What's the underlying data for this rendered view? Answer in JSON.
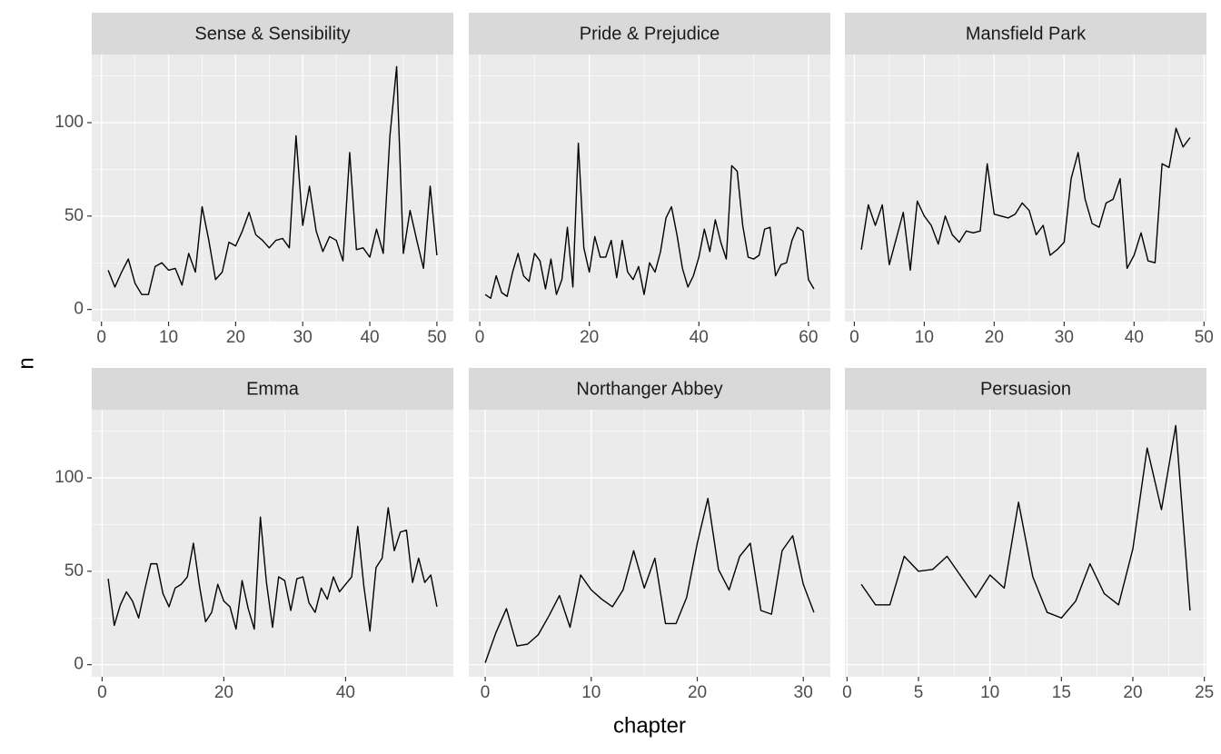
{
  "chart_data": [
    {
      "type": "line",
      "title": "Sense & Sensibility",
      "x": [
        1,
        2,
        3,
        4,
        5,
        6,
        7,
        8,
        9,
        10,
        11,
        12,
        13,
        14,
        15,
        16,
        17,
        18,
        19,
        20,
        21,
        22,
        23,
        24,
        25,
        26,
        27,
        28,
        29,
        30,
        31,
        32,
        33,
        34,
        35,
        36,
        37,
        38,
        39,
        40,
        41,
        42,
        43,
        44,
        45,
        46,
        47,
        48,
        49,
        50
      ],
      "values": [
        21,
        12,
        20,
        27,
        14,
        8,
        8,
        23,
        25,
        21,
        22,
        13,
        30,
        20,
        55,
        37,
        16,
        20,
        36,
        34,
        42,
        52,
        40,
        37,
        33,
        37,
        38,
        33,
        93,
        45,
        66,
        42,
        31,
        39,
        37,
        26,
        84,
        32,
        33,
        28,
        43,
        30,
        93,
        130,
        30,
        53,
        37,
        22,
        66,
        29
      ],
      "xlim": [
        -1.45,
        52.45
      ],
      "xticks": [
        0,
        10,
        20,
        30,
        40,
        50
      ],
      "ylim": [
        -6.5,
        136.5
      ],
      "yticks": [
        0,
        50,
        100
      ],
      "color": "#000000"
    },
    {
      "type": "line",
      "title": "Pride & Prejudice",
      "x": [
        1,
        2,
        3,
        4,
        5,
        6,
        7,
        8,
        9,
        10,
        11,
        12,
        13,
        14,
        15,
        16,
        17,
        18,
        19,
        20,
        21,
        22,
        23,
        24,
        25,
        26,
        27,
        28,
        29,
        30,
        31,
        32,
        33,
        34,
        35,
        36,
        37,
        38,
        39,
        40,
        41,
        42,
        43,
        44,
        45,
        46,
        47,
        48,
        49,
        50,
        51,
        52,
        53,
        54,
        55,
        56,
        57,
        58,
        59,
        60,
        61
      ],
      "values": [
        8,
        6,
        18,
        9,
        7,
        20,
        30,
        18,
        15,
        30,
        26,
        11,
        27,
        8,
        16,
        44,
        12,
        89,
        33,
        20,
        39,
        28,
        28,
        37,
        17,
        37,
        20,
        16,
        23,
        8,
        25,
        20,
        31,
        49,
        55,
        40,
        22,
        12,
        18,
        28,
        43,
        31,
        48,
        36,
        27,
        77,
        74,
        45,
        28,
        27,
        29,
        43,
        44,
        18,
        24,
        25,
        37,
        44,
        42,
        16,
        11
      ],
      "xlim": [
        -2,
        64
      ],
      "xticks": [
        0,
        20,
        40,
        60
      ],
      "ylim": [
        -6.5,
        136.5
      ],
      "yticks": [
        0,
        50,
        100
      ],
      "color": "#000000"
    },
    {
      "type": "line",
      "title": "Mansfield Park",
      "x": [
        1,
        2,
        3,
        4,
        5,
        6,
        7,
        8,
        9,
        10,
        11,
        12,
        13,
        14,
        15,
        16,
        17,
        18,
        19,
        20,
        21,
        22,
        23,
        24,
        25,
        26,
        27,
        28,
        29,
        30,
        31,
        32,
        33,
        34,
        35,
        36,
        37,
        38,
        39,
        40,
        41,
        42,
        43,
        44,
        45,
        46,
        47,
        48
      ],
      "values": [
        32,
        56,
        45,
        56,
        24,
        38,
        52,
        21,
        58,
        50,
        45,
        35,
        50,
        40,
        36,
        42,
        41,
        42,
        78,
        51,
        50,
        49,
        51,
        57,
        53,
        40,
        45,
        29,
        32,
        36,
        70,
        84,
        59,
        46,
        44,
        57,
        59,
        70,
        22,
        29,
        41,
        26,
        25,
        78,
        76,
        97,
        87,
        92
      ],
      "xlim": [
        -1.35,
        50.35
      ],
      "xticks": [
        0,
        10,
        20,
        30,
        40,
        50
      ],
      "ylim": [
        -6.5,
        136.5
      ],
      "yticks": [
        0,
        50,
        100
      ],
      "color": "#000000"
    },
    {
      "type": "line",
      "title": "Emma",
      "x": [
        1,
        2,
        3,
        4,
        5,
        6,
        7,
        8,
        9,
        10,
        11,
        12,
        13,
        14,
        15,
        16,
        17,
        18,
        19,
        20,
        21,
        22,
        23,
        24,
        25,
        26,
        27,
        28,
        29,
        30,
        31,
        32,
        33,
        34,
        35,
        36,
        37,
        38,
        39,
        40,
        41,
        42,
        43,
        44,
        45,
        46,
        47,
        48,
        49,
        50,
        51,
        52,
        53,
        54,
        55
      ],
      "values": [
        46,
        21,
        32,
        39,
        34,
        25,
        40,
        54,
        54,
        38,
        31,
        41,
        43,
        47,
        65,
        42,
        23,
        28,
        43,
        34,
        31,
        19,
        45,
        30,
        19,
        79,
        44,
        20,
        47,
        45,
        29,
        46,
        47,
        33,
        28,
        41,
        35,
        47,
        39,
        43,
        47,
        74,
        42,
        18,
        52,
        57,
        84,
        61,
        71,
        72,
        44,
        57,
        44,
        48,
        31
      ],
      "xlim": [
        -1.7,
        57.7
      ],
      "xticks": [
        0,
        20,
        40
      ],
      "ylim": [
        -6.5,
        136.5
      ],
      "yticks": [
        0,
        50,
        100
      ],
      "color": "#000000"
    },
    {
      "type": "line",
      "title": "Northanger Abbey",
      "x": [
        0,
        1,
        2,
        3,
        4,
        5,
        6,
        7,
        8,
        9,
        10,
        11,
        12,
        13,
        14,
        15,
        16,
        17,
        18,
        19,
        20,
        21,
        22,
        23,
        24,
        25,
        26,
        27,
        28,
        29,
        30,
        31
      ],
      "values": [
        1,
        17,
        30,
        10,
        11,
        16,
        26,
        37,
        20,
        48,
        40,
        35,
        31,
        40,
        61,
        41,
        57,
        22,
        22,
        36,
        65,
        89,
        51,
        40,
        58,
        65,
        29,
        27,
        61,
        69,
        43,
        28
      ],
      "xlim": [
        -1.55,
        32.55
      ],
      "xticks": [
        0,
        10,
        20,
        30
      ],
      "ylim": [
        -6.5,
        136.5
      ],
      "yticks": [
        0,
        50,
        100
      ],
      "color": "#000000"
    },
    {
      "type": "line",
      "title": "Persuasion",
      "x": [
        1,
        2,
        3,
        4,
        5,
        6,
        7,
        8,
        9,
        10,
        11,
        12,
        13,
        14,
        15,
        16,
        17,
        18,
        19,
        20,
        21,
        22,
        23,
        24
      ],
      "values": [
        43,
        32,
        32,
        58,
        50,
        51,
        58,
        47,
        36,
        48,
        41,
        87,
        47,
        28,
        25,
        34,
        54,
        38,
        32,
        62,
        116,
        83,
        128,
        29
      ],
      "xlim": [
        -0.15,
        25.15
      ],
      "xticks": [
        0,
        5,
        10,
        15,
        20,
        25
      ],
      "ylim": [
        -6.5,
        136.5
      ],
      "yticks": [
        0,
        50,
        100
      ],
      "color": "#000000"
    }
  ],
  "x_label": "chapter",
  "y_label": "n"
}
